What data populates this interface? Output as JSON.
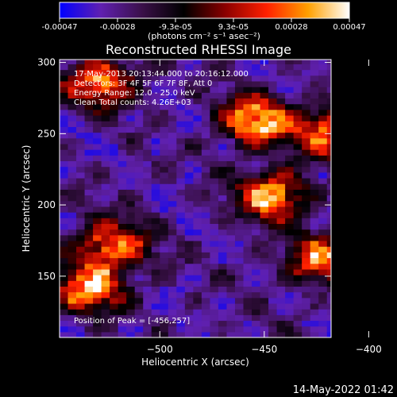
{
  "chart_data": {
    "type": "heatmap",
    "title": "Reconstructed RHESSI Image",
    "xlabel": "Heliocentric X (arcsec)",
    "ylabel": "Heliocentric Y (arcsec)",
    "xlim": [
      -548,
      -418
    ],
    "ylim": [
      107,
      302
    ],
    "x_ticks": [
      -500,
      -450,
      -400
    ],
    "y_ticks": [
      150,
      200,
      250,
      300
    ],
    "colorbar": {
      "unit_label": "(photons cm⁻² s⁻¹ asec⁻²)",
      "tick_labels": [
        "-0.00047",
        "-0.00028",
        "-9.3e-05",
        "9.3e-05",
        "0.00028",
        "0.00047"
      ],
      "range": [
        -0.00047,
        0.00047
      ],
      "colormap": [
        "#0000ff",
        "#6020b0",
        "#3a1048",
        "#000000",
        "#8a0000",
        "#ff2000",
        "#ffa000",
        "#ffffff"
      ]
    },
    "annotations": [
      "17-May-2013 20:13:44.000 to 20:16:12.000",
      "Detectors: 3F 4F 5F 6F 7F 8F, Att 0",
      "Energy Range: 12.0 - 25.0 keV",
      "Clean    Total counts: 4.26E+03"
    ],
    "peak_label": "Position of Peak = [-456,257]",
    "peak": [
      -456,
      257
    ],
    "bright_regions": [
      {
        "x": -456,
        "y": 257,
        "intensity": 1.0
      },
      {
        "x": -448,
        "y": 205,
        "intensity": 0.8
      },
      {
        "x": -525,
        "y": 170,
        "intensity": 0.7
      },
      {
        "x": -535,
        "y": 140,
        "intensity": 0.75
      },
      {
        "x": -530,
        "y": 285,
        "intensity": 0.65
      },
      {
        "x": -425,
        "y": 160,
        "intensity": 0.6
      },
      {
        "x": -420,
        "y": 250,
        "intensity": 0.6
      }
    ]
  },
  "footer": {
    "timestamp": "14-May-2022 01:42"
  }
}
